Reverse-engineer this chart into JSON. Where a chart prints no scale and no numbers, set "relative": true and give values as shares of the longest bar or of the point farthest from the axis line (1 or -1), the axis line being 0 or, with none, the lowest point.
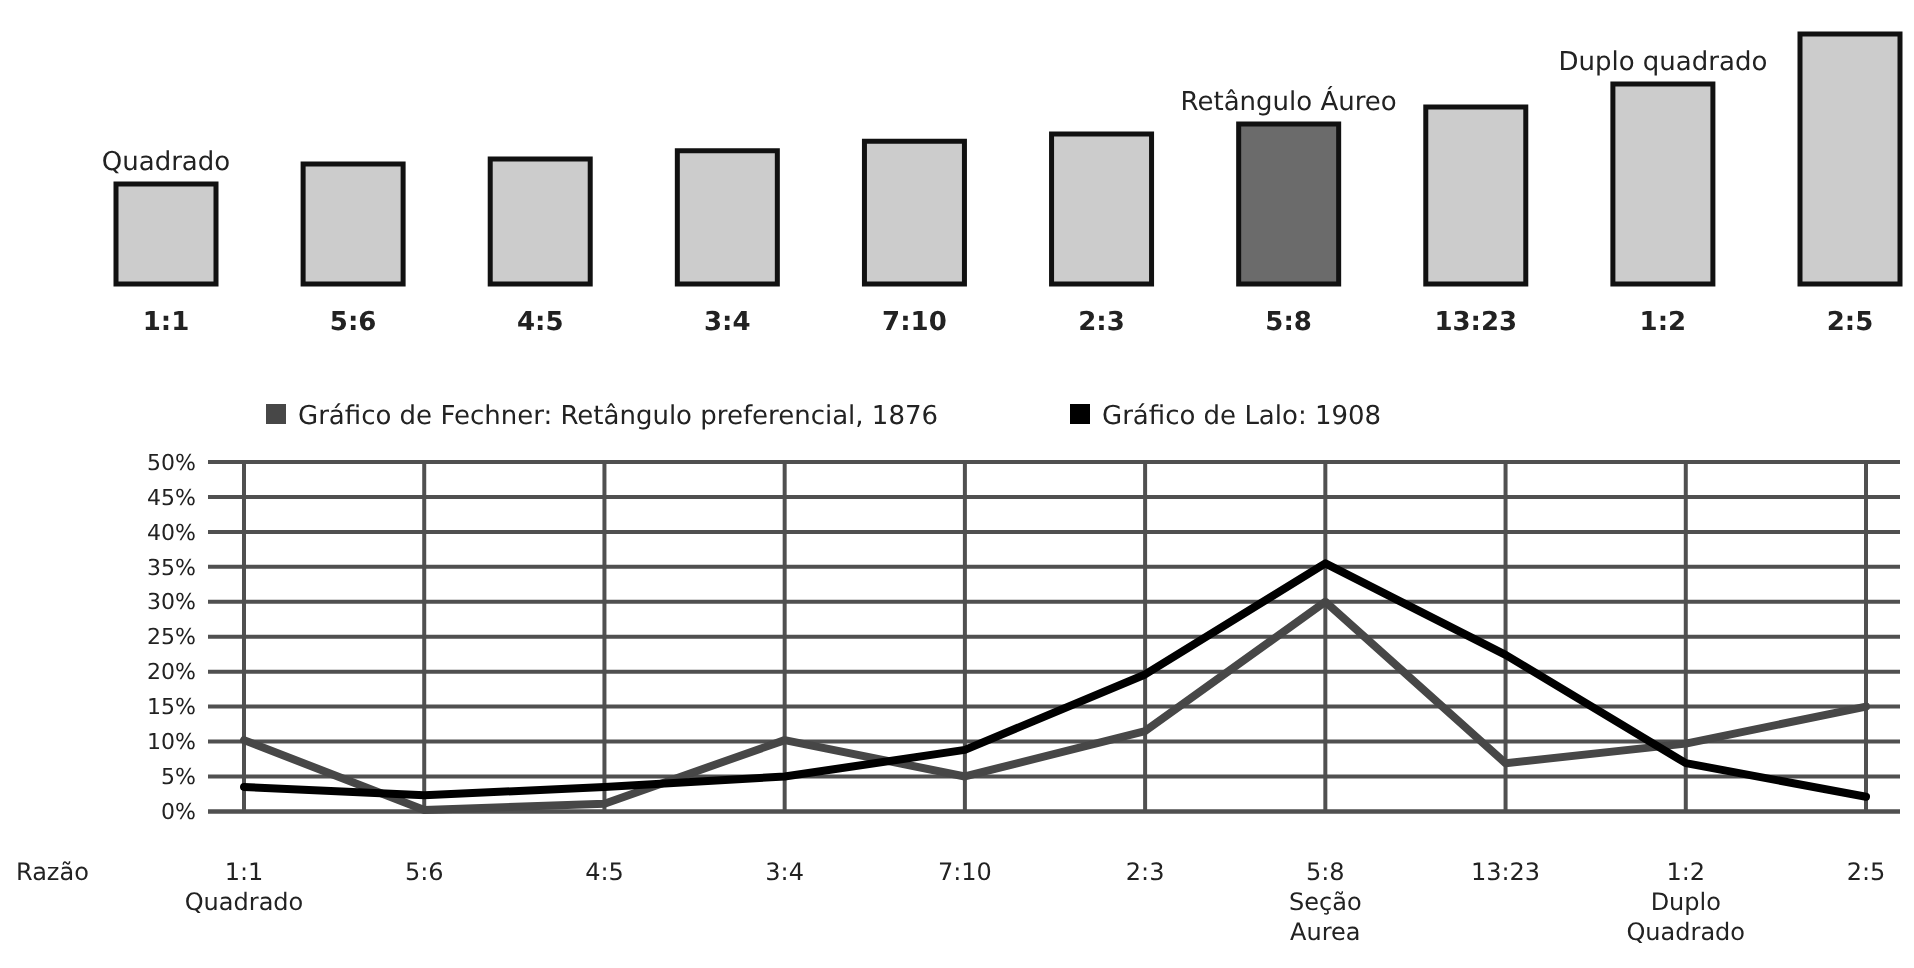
{
  "chart_data": [
    {
      "type": "bar",
      "relative": true,
      "categories": [
        "1:1",
        "5:6",
        "4:5",
        "3:4",
        "7:10",
        "2:3",
        "5:8",
        "13:23",
        "1:2",
        "2:5"
      ],
      "values": [
        0.4,
        0.48,
        0.5,
        0.533,
        0.571,
        0.6,
        0.64,
        0.708,
        0.8,
        1
      ],
      "colors": [
        "#cccccc",
        "#cccccc",
        "#cccccc",
        "#cccccc",
        "#cccccc",
        "#cccccc",
        "#6b6b6b",
        "#cccccc",
        "#cccccc",
        "#cccccc"
      ],
      "annotations": [
        "Quadrado",
        "Retângulo Áureo",
        "Duplo quadrado"
      ]
    },
    {
      "type": "line",
      "categories": [
        "1:1\nQuadrado",
        "5:6",
        "4:5",
        "3:4",
        "7:10",
        "2:3",
        "5:8\nSeção\nAurea",
        "13:23",
        "1:2\nDuplo\nQuadrado",
        "2:5"
      ],
      "xlabel": "Razão",
      "series": [
        {
          "name": "Gráfico de Fechner: Retângulo preferencial, 1876",
          "color": "#474747",
          "values": [
            10.2,
            0.2,
            1.1,
            10.2,
            5.0,
            11.5,
            30.0,
            6.9,
            9.7,
            15.0
          ]
        },
        {
          "name": "Gráfico de Lalo: 1908",
          "color": "#000000",
          "values": [
            3.5,
            2.3,
            3.5,
            5.0,
            8.8,
            19.6,
            35.5,
            22.4,
            6.9,
            2.1
          ]
        }
      ],
      "ylim": [
        0,
        50
      ],
      "yticks": [
        {
          "value": 0,
          "label": "0%"
        },
        {
          "value": 5,
          "label": "5%"
        },
        {
          "value": 10,
          "label": "10%"
        },
        {
          "value": 15,
          "label": "15%"
        },
        {
          "value": 20,
          "label": "20%"
        },
        {
          "value": 25,
          "label": "25%"
        },
        {
          "value": 30,
          "label": "30%"
        },
        {
          "value": 35,
          "label": "35%"
        },
        {
          "value": 40,
          "label": "40%"
        },
        {
          "value": 45,
          "label": "45%"
        },
        {
          "value": 50,
          "label": "50%"
        }
      ],
      "grid": true,
      "legend": "top",
      "line_style": "solid"
    }
  ]
}
